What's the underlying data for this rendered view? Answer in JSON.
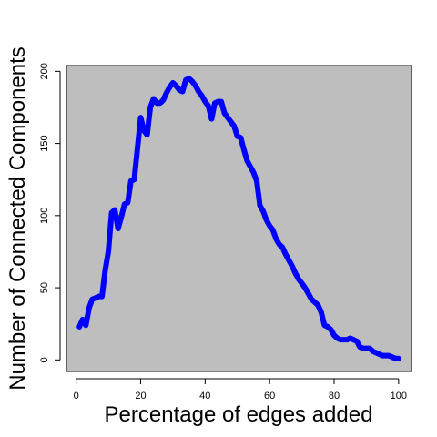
{
  "chart_data": {
    "type": "line",
    "xlabel": "Percentage of edges added",
    "ylabel": "Number of Connected Components",
    "xlim": [
      -3,
      104
    ],
    "ylim": [
      -8,
      204
    ],
    "x_ticks": [
      "0",
      "20",
      "40",
      "60",
      "80",
      "100"
    ],
    "y_ticks": [
      "0",
      "50",
      "100",
      "150",
      "200"
    ],
    "background_color": "#bebebe",
    "line_color": "#0000ff",
    "grid": false,
    "series": [
      {
        "x": [
          1,
          2,
          3,
          4,
          5,
          6,
          7,
          8,
          9,
          10,
          11,
          12,
          13,
          14,
          15,
          16,
          17,
          18,
          19,
          20,
          21,
          22,
          23,
          24,
          25,
          26,
          27,
          28,
          29,
          30,
          31,
          32,
          33,
          34,
          35,
          36,
          37,
          38,
          39,
          40,
          41,
          42,
          43,
          44,
          45,
          46,
          47,
          48,
          49,
          50,
          51,
          52,
          53,
          54,
          55,
          56,
          57,
          58,
          59,
          60,
          61,
          62,
          63,
          64,
          65,
          66,
          67,
          68,
          69,
          70,
          71,
          72,
          73,
          74,
          75,
          76,
          77,
          78,
          79,
          80,
          81,
          82,
          83,
          84,
          85,
          86,
          87,
          88,
          89,
          90,
          91,
          92,
          93,
          94,
          95,
          96,
          97,
          98,
          99,
          100
        ],
        "y": [
          23,
          28,
          24,
          36,
          42,
          43,
          44,
          44,
          62,
          75,
          102,
          104,
          91,
          99,
          108,
          109,
          124,
          125,
          146,
          168,
          159,
          156,
          175,
          181,
          178,
          178,
          180,
          185,
          189,
          192,
          190,
          187,
          186,
          194,
          195,
          193,
          190,
          186,
          183,
          179,
          176,
          167,
          178,
          179,
          179,
          171,
          168,
          165,
          162,
          155,
          154,
          146,
          138,
          134,
          130,
          124,
          107,
          103,
          97,
          93,
          90,
          84,
          80,
          78,
          73,
          69,
          65,
          60,
          56,
          53,
          50,
          46,
          42,
          40,
          38,
          33,
          24,
          23,
          21,
          17,
          15,
          14,
          14,
          14,
          15,
          14,
          13,
          9,
          8,
          8,
          8,
          6,
          5,
          4,
          3,
          3,
          3,
          2,
          1,
          1
        ]
      }
    ]
  }
}
